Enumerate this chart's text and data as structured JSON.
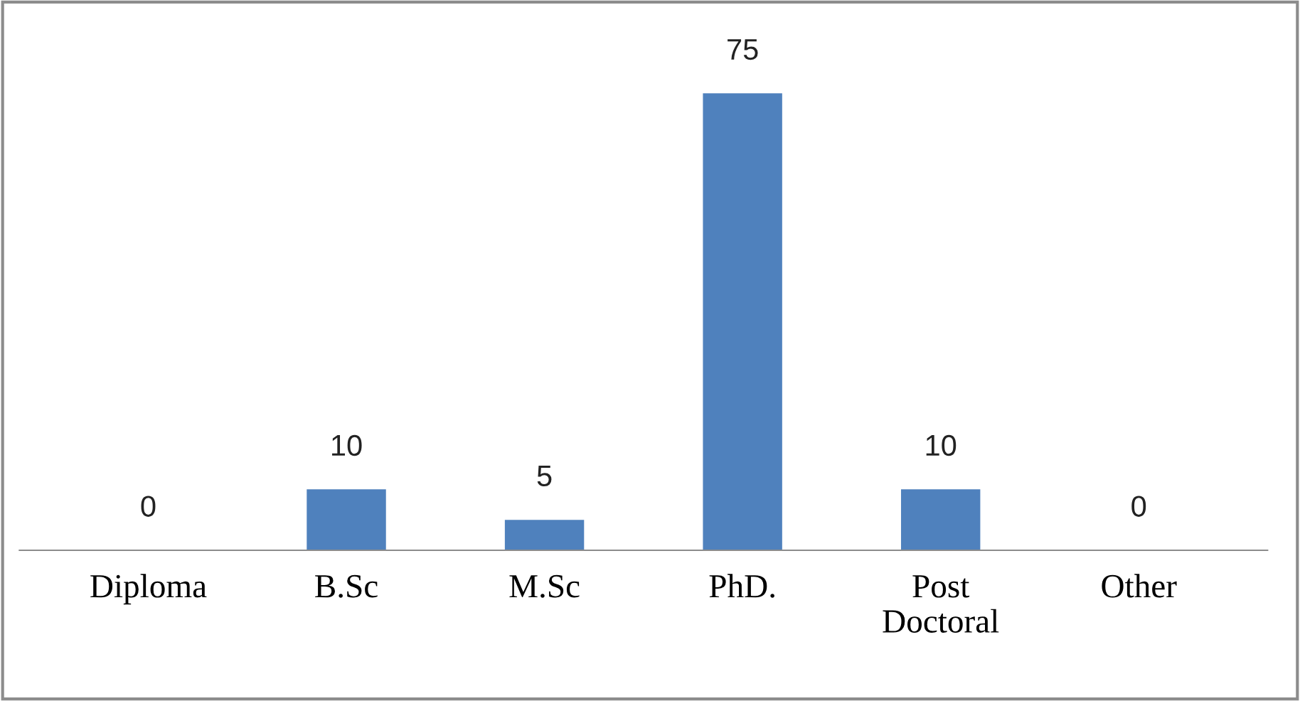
{
  "chart_data": {
    "type": "bar",
    "categories": [
      "Diploma",
      "B.Sc",
      "M.Sc",
      "PhD.",
      "Post\nDoctoral",
      "Other"
    ],
    "values": [
      0,
      10,
      5,
      75,
      10,
      0
    ],
    "color": "#4f81bd",
    "data_labels": true,
    "grid": false,
    "legend": false
  }
}
